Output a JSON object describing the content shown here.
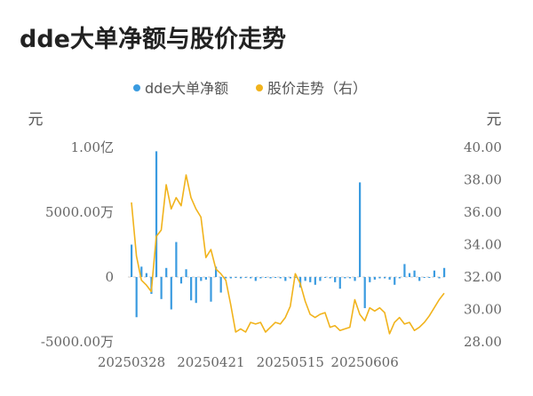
{
  "title": "dde大单净额与股价走势",
  "chart_data": {
    "type": "bar+line",
    "legend": {
      "position": "top-center",
      "items": [
        "dde大单净额",
        "股价走势（右）"
      ]
    },
    "colors": {
      "bar": "#3a9be0",
      "line": "#f1b31c",
      "zero_line": "#cccccc"
    },
    "y_left": {
      "unit": "元",
      "ticks": [
        "1.00亿",
        "5000.00万",
        "0",
        "-5000.00万"
      ],
      "tick_values": [
        100000000,
        50000000,
        0,
        -50000000
      ],
      "range": [
        -50000000,
        100000000
      ]
    },
    "y_right": {
      "unit": "元",
      "ticks": [
        "40.00",
        "38.00",
        "36.00",
        "34.00",
        "32.00",
        "30.00",
        "28.00"
      ],
      "tick_values": [
        40,
        38,
        36,
        34,
        32,
        30,
        28
      ],
      "range": [
        28,
        40
      ]
    },
    "x_ticks": [
      "20250328",
      "20250421",
      "20250515",
      "20250606"
    ],
    "x_tick_index": [
      0,
      16,
      32,
      47
    ],
    "series": [
      {
        "name": "dde大单净额",
        "kind": "bar",
        "values": [
          25000000,
          -31000000,
          8000000,
          3000000,
          -13000000,
          97000000,
          -17000000,
          7000000,
          -25000000,
          27000000,
          -5000000,
          6000000,
          -18000000,
          -20000000,
          -3000000,
          -2000000,
          -19000000,
          8000000,
          -12000000,
          -1000000,
          -1000000,
          -500000,
          -1000000,
          -500000,
          -1000000,
          -3000000,
          -1000000,
          -500000,
          -1000000,
          -500000,
          -1000000,
          -3000000,
          -1000000,
          -500000,
          -8000000,
          -3000000,
          -4000000,
          -6000000,
          -3000000,
          -500000,
          -1000000,
          -4000000,
          -9000000,
          -1000000,
          -1000000,
          -3000000,
          73000000,
          -24000000,
          -4000000,
          -2000000,
          -1000000,
          -1000000,
          -2000000,
          -6000000,
          -1000000,
          10000000,
          3000000,
          5000000,
          -3000000,
          -500000,
          -500000,
          5000000,
          -1000000,
          7000000
        ]
      },
      {
        "name": "股价走势（右）",
        "kind": "line",
        "values": [
          36.6,
          33.3,
          31.8,
          31.5,
          31.1,
          34.5,
          34.9,
          37.7,
          36.2,
          36.9,
          36.4,
          38.3,
          36.9,
          36.2,
          35.7,
          33.2,
          33.7,
          32.5,
          32.2,
          31.8,
          30.3,
          28.6,
          28.8,
          28.6,
          29.2,
          29.1,
          29.2,
          28.6,
          28.9,
          29.2,
          29.1,
          29.5,
          30.2,
          32.2,
          31.6,
          30.5,
          29.7,
          29.5,
          29.7,
          29.8,
          28.9,
          29.0,
          28.7,
          28.8,
          28.9,
          30.6,
          29.7,
          29.3,
          30.1,
          29.9,
          30.1,
          29.8,
          28.5,
          29.2,
          29.5,
          29.1,
          29.2,
          28.7,
          28.9,
          29.2,
          29.6,
          30.1,
          30.6,
          31.0
        ]
      }
    ]
  }
}
